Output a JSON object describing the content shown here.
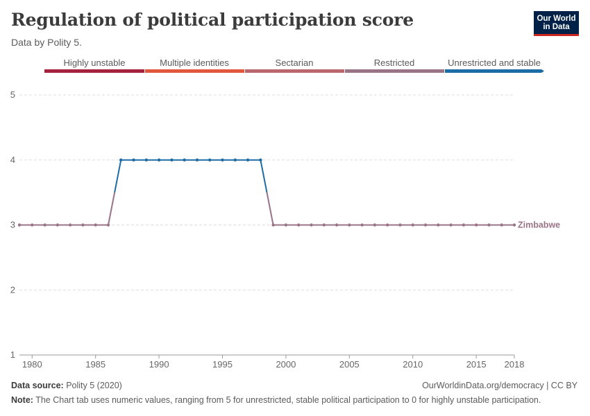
{
  "header": {
    "title": "Regulation of political participation score",
    "subtitle": "Data by Polity 5."
  },
  "logo": {
    "line1": "Our World",
    "line2": "in Data"
  },
  "footer": {
    "source_label": "Data source:",
    "source_value": "Polity 5 (2020)",
    "url": "OurWorldinData.org/democracy | CC BY",
    "note_label": "Note:",
    "note_value": "The Chart tab uses numeric values, ranging from 5 for unrestricted, stable political participation to 0 for highly unstable participation."
  },
  "chart_data": {
    "type": "line",
    "ylim": [
      1,
      5
    ],
    "xlim": [
      1979,
      2018
    ],
    "y_ticks": [
      1,
      2,
      3,
      4,
      5
    ],
    "x_ticks": [
      1980,
      1985,
      1990,
      1995,
      2000,
      2005,
      2010,
      2015,
      2018
    ],
    "grid": "horizontal dashed",
    "legend": {
      "placement": "top",
      "categories": [
        {
          "label": "Highly unstable",
          "color": "#a2233b"
        },
        {
          "label": "Multiple identities",
          "color": "#e0573b"
        },
        {
          "label": "Sectarian",
          "color": "#b9666c"
        },
        {
          "label": "Restricted",
          "color": "#9a7386"
        },
        {
          "label": "Unrestricted and stable",
          "color": "#1c6ca6"
        }
      ]
    },
    "series": [
      {
        "name": "Zimbabwe",
        "label_color": "#9a7386",
        "x": [
          1979,
          1980,
          1981,
          1982,
          1983,
          1984,
          1985,
          1986,
          1987,
          1988,
          1989,
          1990,
          1991,
          1992,
          1993,
          1994,
          1995,
          1996,
          1997,
          1998,
          1999,
          2000,
          2001,
          2002,
          2003,
          2004,
          2005,
          2006,
          2007,
          2008,
          2009,
          2010,
          2011,
          2012,
          2013,
          2014,
          2015,
          2016,
          2017,
          2018
        ],
        "y": [
          3,
          3,
          3,
          3,
          3,
          3,
          3,
          3,
          4,
          4,
          4,
          4,
          4,
          4,
          4,
          4,
          4,
          4,
          4,
          4,
          3,
          3,
          3,
          3,
          3,
          3,
          3,
          3,
          3,
          3,
          3,
          3,
          3,
          3,
          3,
          3,
          3,
          3,
          3,
          3
        ]
      }
    ]
  }
}
